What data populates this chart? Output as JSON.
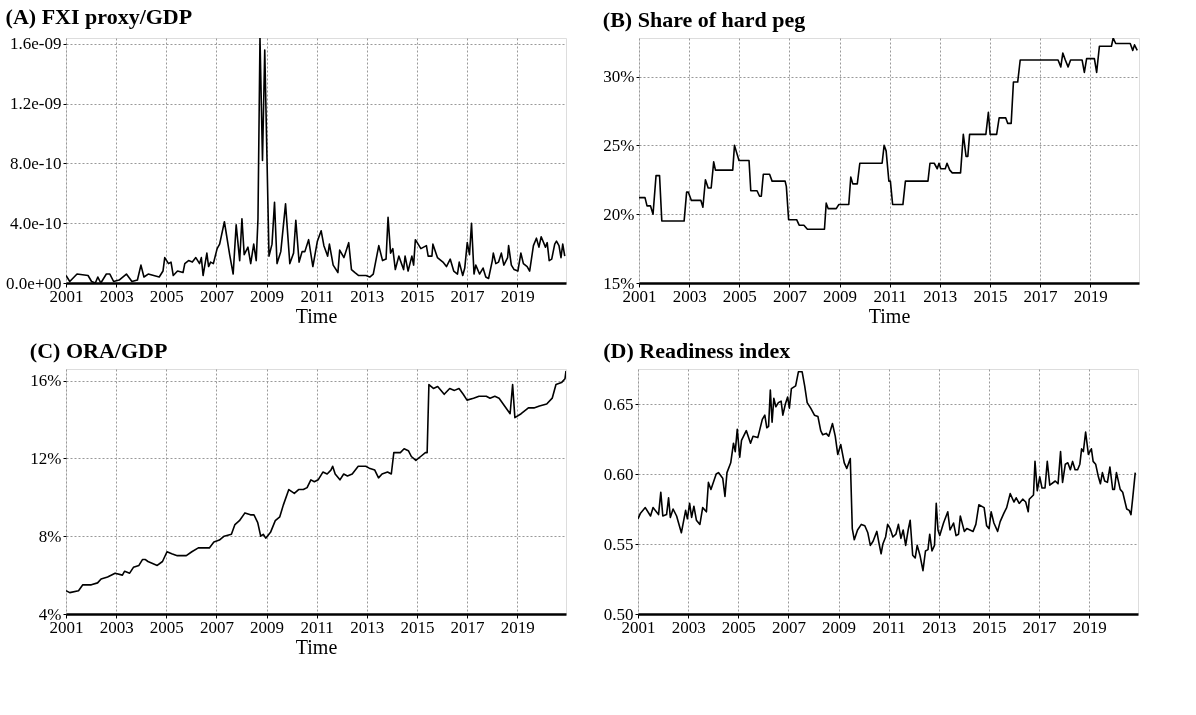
{
  "chart_data": [
    {
      "type": "line",
      "title": "(A) FXI proxy/GDP",
      "xlabel": "Time",
      "xlim": [
        2001,
        2020.95
      ],
      "xticks": [
        2001,
        2003,
        2005,
        2007,
        2009,
        2011,
        2013,
        2015,
        2017,
        2019
      ],
      "ylim": [
        0,
        1.64e-09
      ],
      "yticks": [
        {
          "value": 0,
          "label": "0.0e+00"
        },
        {
          "value": 4e-10,
          "label": "4.0e-10"
        },
        {
          "value": 8e-10,
          "label": "8.0e-10"
        },
        {
          "value": 1.2e-09,
          "label": "1.2e-09"
        },
        {
          "value": 1.6e-09,
          "label": "1.6e-09"
        }
      ],
      "grid": true,
      "line_style": "solid",
      "series": [
        {
          "color": "#000000",
          "x": [
            2001.0,
            2001.15,
            2001.44,
            2001.88,
            2002.02,
            2002.17,
            2002.27,
            2002.39,
            2002.61,
            2002.75,
            2002.9,
            2003.12,
            2003.41,
            2003.63,
            2003.85,
            2003.99,
            2004.11,
            2004.28,
            2004.72,
            2004.87,
            2004.94,
            2005.09,
            2005.19,
            2005.28,
            2005.45,
            2005.67,
            2005.74,
            2005.89,
            2006.04,
            2006.18,
            2006.33,
            2006.4,
            2006.47,
            2006.62,
            2006.69,
            2006.77,
            2006.88,
            2007.03,
            2007.13,
            2007.32,
            2007.53,
            2007.67,
            2007.79,
            2007.93,
            2008.02,
            2008.11,
            2008.26,
            2008.37,
            2008.49,
            2008.59,
            2008.66,
            2008.74,
            2008.84,
            2008.93,
            2009.1,
            2009.22,
            2009.32,
            2009.42,
            2009.57,
            2009.76,
            2009.93,
            2010.08,
            2010.17,
            2010.3,
            2010.42,
            2010.53,
            2010.68,
            2010.85,
            2011.03,
            2011.18,
            2011.29,
            2011.44,
            2011.51,
            2011.66,
            2011.85,
            2011.92,
            2012.09,
            2012.28,
            2012.39,
            2012.53,
            2012.68,
            2012.97,
            2013.12,
            2013.26,
            2013.48,
            2013.63,
            2013.77,
            2013.85,
            2013.95,
            2014.04,
            2014.14,
            2014.28,
            2014.47,
            2014.53,
            2014.65,
            2014.8,
            2014.87,
            2014.94,
            2015.16,
            2015.38,
            2015.45,
            2015.6,
            2015.64,
            2015.82,
            2016.04,
            2016.18,
            2016.33,
            2016.47,
            2016.62,
            2016.69,
            2016.83,
            2016.91,
            2017.01,
            2017.1,
            2017.18,
            2017.28,
            2017.35,
            2017.5,
            2017.64,
            2017.75,
            2017.86,
            2018.01,
            2018.05,
            2018.15,
            2018.26,
            2018.37,
            2018.47,
            2018.62,
            2018.66,
            2018.77,
            2018.88,
            2019.03,
            2019.15,
            2019.25,
            2019.4,
            2019.5,
            2019.65,
            2019.77,
            2019.87,
            2019.96,
            2020.13,
            2020.2,
            2020.28,
            2020.38,
            2020.5,
            2020.57,
            2020.67,
            2020.75,
            2020.82,
            2020.9
          ],
          "values": [
            5e-11,
            1e-11,
            6e-11,
            5e-11,
            1e-11,
            0,
            4e-11,
            0,
            6e-11,
            6e-11,
            1e-11,
            2e-11,
            6e-11,
            1e-11,
            2e-11,
            1.2e-10,
            4e-11,
            6e-11,
            4e-11,
            8e-11,
            1.7e-10,
            1.3e-10,
            1.4e-10,
            5e-11,
            8e-11,
            7e-11,
            1.3e-10,
            1.5e-10,
            1.4e-10,
            1.7e-10,
            1.3e-10,
            1.7e-10,
            5e-11,
            2e-10,
            1.1e-10,
            1.4e-10,
            1.3e-10,
            2.3e-10,
            2.6e-10,
            4.1e-10,
            1.9e-10,
            6e-11,
            3.9e-10,
            1.5e-10,
            4.3e-10,
            1.9e-10,
            2.4e-10,
            1.3e-10,
            2.6e-10,
            1.5e-10,
            4.3e-10,
            1.64e-09,
            8.2e-10,
            1.56e-09,
            1.8e-10,
            2.6e-10,
            5.4e-10,
            1.3e-10,
            2.1e-10,
            5.3e-10,
            1.3e-10,
            2e-10,
            4.2e-10,
            1.4e-10,
            2.1e-10,
            2.1e-10,
            2.9e-10,
            1.1e-10,
            2.8e-10,
            3.5e-10,
            2.5e-10,
            1.8e-10,
            2.6e-10,
            1.2e-10,
            7e-11,
            2.2e-10,
            1.7e-10,
            2.7e-10,
            9e-11,
            7e-11,
            5e-11,
            5e-11,
            4e-11,
            6e-11,
            2.5e-10,
            1.5e-10,
            1.6e-10,
            4.4e-10,
            2e-10,
            2.3e-10,
            9e-11,
            1.8e-10,
            9e-11,
            1.8e-10,
            8e-11,
            1.8e-10,
            1.2e-10,
            2.9e-10,
            2.3e-10,
            2.5e-10,
            1.8e-10,
            1.8e-10,
            2.6e-10,
            1.7e-10,
            1.4e-10,
            1.1e-10,
            1.6e-10,
            8e-11,
            6e-11,
            1.4e-10,
            5e-11,
            1e-10,
            2.7e-10,
            1.9e-10,
            4e-10,
            6e-11,
            1.2e-10,
            6e-11,
            1e-10,
            4e-11,
            3e-11,
            1.5e-10,
            2e-10,
            1.3e-10,
            1.4e-10,
            2e-10,
            1.2e-10,
            1.7e-10,
            2.5e-10,
            1.2e-10,
            9e-11,
            8e-11,
            2e-10,
            1.3e-10,
            1.1e-10,
            8e-11,
            2.5e-10,
            3e-10,
            2.4e-10,
            3.1e-10,
            2.4e-10,
            2.7e-10,
            1.5e-10,
            1.6e-10,
            2.6e-10,
            2.8e-10,
            2.5e-10,
            1.7e-10,
            2.6e-10,
            1.8e-10
          ]
        }
      ]
    },
    {
      "type": "line",
      "title": "(B) Share of hard peg",
      "xlabel": "Time",
      "xlim": [
        2001,
        2020.95
      ],
      "xticks": [
        2001,
        2003,
        2005,
        2007,
        2009,
        2011,
        2013,
        2015,
        2017,
        2019
      ],
      "ylim": [
        15,
        32.8
      ],
      "yticks": [
        {
          "value": 15,
          "label": "15%"
        },
        {
          "value": 20,
          "label": "20%"
        },
        {
          "value": 25,
          "label": "25%"
        },
        {
          "value": 30,
          "label": "30%"
        }
      ],
      "grid": true,
      "line_style": "solid",
      "series": [
        {
          "color": "#000000",
          "x": [
            2001.0,
            2001.24,
            2001.32,
            2001.46,
            2001.56,
            2001.68,
            2001.82,
            2001.91,
            2002.8,
            2002.9,
            2002.97,
            2003.09,
            2003.47,
            2003.55,
            2003.65,
            2003.76,
            2003.88,
            2003.98,
            2004.05,
            2004.74,
            2004.81,
            2004.99,
            2005.39,
            2005.46,
            2005.71,
            2005.81,
            2005.88,
            2005.96,
            2006.21,
            2006.31,
            2006.83,
            2006.88,
            2006.97,
            2007.29,
            2007.39,
            2007.58,
            2007.72,
            2008.4,
            2008.47,
            2008.55,
            2008.87,
            2008.97,
            2009.37,
            2009.45,
            2009.53,
            2009.71,
            2009.81,
            2010.7,
            2010.78,
            2010.86,
            2010.97,
            2011.03,
            2011.12,
            2011.53,
            2011.63,
            2012.53,
            2012.61,
            2012.78,
            2012.9,
            2012.97,
            2013.04,
            2013.22,
            2013.29,
            2013.4,
            2013.5,
            2013.83,
            2013.94,
            2014.05,
            2014.12,
            2014.19,
            2014.84,
            2014.94,
            2015.01,
            2015.27,
            2015.37,
            2015.63,
            2015.71,
            2015.85,
            2015.94,
            2016.11,
            2016.21,
            2017.72,
            2017.83,
            2017.91,
            2018.01,
            2018.12,
            2018.22,
            2018.68,
            2018.77,
            2018.86,
            2019.17,
            2019.26,
            2019.37,
            2019.85,
            2019.92,
            2020.02,
            2020.6,
            2020.7,
            2020.77,
            2020.88
          ],
          "values": [
            21.2,
            21.2,
            20.6,
            20.6,
            20.0,
            22.8,
            22.8,
            19.5,
            19.5,
            21.6,
            21.6,
            21.0,
            21.0,
            20.5,
            22.5,
            21.9,
            21.9,
            23.8,
            23.2,
            23.2,
            25.0,
            23.9,
            23.9,
            21.7,
            21.7,
            21.3,
            21.3,
            22.9,
            22.9,
            22.4,
            22.4,
            22.0,
            19.6,
            19.6,
            19.2,
            19.2,
            18.9,
            18.9,
            20.8,
            20.4,
            20.4,
            20.7,
            20.7,
            22.7,
            22.2,
            22.2,
            23.7,
            23.7,
            25.0,
            24.6,
            22.4,
            22.4,
            20.7,
            20.7,
            22.4,
            22.4,
            23.7,
            23.7,
            23.3,
            23.7,
            23.3,
            23.3,
            23.7,
            23.2,
            23.0,
            23.0,
            25.8,
            24.2,
            24.2,
            25.8,
            25.8,
            27.4,
            25.8,
            25.8,
            27.0,
            27.0,
            26.6,
            26.6,
            29.6,
            29.6,
            31.2,
            31.2,
            30.7,
            31.7,
            31.2,
            30.7,
            31.2,
            31.2,
            30.3,
            31.3,
            31.3,
            30.3,
            32.2,
            32.2,
            32.8,
            32.4,
            32.4,
            31.9,
            32.3,
            31.9
          ]
        }
      ]
    },
    {
      "type": "line",
      "title": "(C) ORA/GDP",
      "xlabel": "Time",
      "xlim": [
        2001,
        2020.95
      ],
      "xticks": [
        2001,
        2003,
        2005,
        2007,
        2009,
        2011,
        2013,
        2015,
        2017,
        2019
      ],
      "ylim": [
        4,
        16.6
      ],
      "yticks": [
        {
          "value": 4,
          "label": "4%"
        },
        {
          "value": 8,
          "label": "8%"
        },
        {
          "value": 12,
          "label": "12%"
        },
        {
          "value": 16,
          "label": "16%"
        }
      ],
      "grid": true,
      "line_style": "solid",
      "series": [
        {
          "color": "#000000",
          "x": [
            2001.0,
            2001.15,
            2001.5,
            2001.67,
            2002.01,
            2002.26,
            2002.4,
            2002.66,
            2002.96,
            2003.25,
            2003.34,
            2003.54,
            2003.69,
            2003.91,
            2004.05,
            2004.17,
            2004.27,
            2004.64,
            2004.85,
            2005.03,
            2005.22,
            2005.44,
            2005.8,
            2006.02,
            2006.28,
            2006.46,
            2006.72,
            2006.9,
            2007.12,
            2007.31,
            2007.6,
            2007.74,
            2007.92,
            2008.14,
            2008.36,
            2008.5,
            2008.65,
            2008.77,
            2008.87,
            2008.97,
            2009.16,
            2009.35,
            2009.53,
            2009.67,
            2009.89,
            2010.11,
            2010.28,
            2010.47,
            2010.62,
            2010.77,
            2010.91,
            2011.06,
            2011.25,
            2011.42,
            2011.57,
            2011.64,
            2011.74,
            2011.93,
            2012.08,
            2012.23,
            2012.42,
            2012.66,
            2012.81,
            2012.96,
            2013.1,
            2013.32,
            2013.47,
            2013.61,
            2013.83,
            2013.98,
            2014.08,
            2014.34,
            2014.49,
            2014.66,
            2014.78,
            2014.96,
            2015.15,
            2015.34,
            2015.41,
            2015.48,
            2015.66,
            2015.83,
            2016.09,
            2016.31,
            2016.5,
            2016.68,
            2016.85,
            2017.0,
            2017.26,
            2017.48,
            2017.77,
            2017.92,
            2018.11,
            2018.28,
            2018.5,
            2018.72,
            2018.82,
            2018.91,
            2019.16,
            2019.45,
            2019.67,
            2019.89,
            2020.18,
            2020.4,
            2020.55,
            2020.77,
            2020.91,
            2020.95
          ],
          "values": [
            5.2,
            5.1,
            5.2,
            5.5,
            5.5,
            5.6,
            5.8,
            5.9,
            6.1,
            6.0,
            6.2,
            6.1,
            6.4,
            6.5,
            6.8,
            6.8,
            6.7,
            6.5,
            6.7,
            7.2,
            7.1,
            7.0,
            7.0,
            7.2,
            7.4,
            7.4,
            7.4,
            7.7,
            7.8,
            8.0,
            8.1,
            8.6,
            8.8,
            9.2,
            9.1,
            9.1,
            8.7,
            8.0,
            8.1,
            7.9,
            8.2,
            8.8,
            9.0,
            9.6,
            10.4,
            10.2,
            10.4,
            10.4,
            10.5,
            10.9,
            10.8,
            10.9,
            11.3,
            11.2,
            11.4,
            11.6,
            11.2,
            10.9,
            11.2,
            11.1,
            11.2,
            11.6,
            11.6,
            11.6,
            11.5,
            11.4,
            11.0,
            11.2,
            11.3,
            11.2,
            12.3,
            12.3,
            12.5,
            12.4,
            12.1,
            11.9,
            12.1,
            12.3,
            12.3,
            15.8,
            15.6,
            15.7,
            15.3,
            15.6,
            15.5,
            15.6,
            15.3,
            15.0,
            15.1,
            15.2,
            15.2,
            15.1,
            15.2,
            15.1,
            14.7,
            14.3,
            15.8,
            14.1,
            14.3,
            14.6,
            14.6,
            14.7,
            14.8,
            15.1,
            15.8,
            15.9,
            16.1,
            16.5
          ]
        }
      ]
    },
    {
      "type": "line",
      "title": "(D) Readiness index",
      "xlim": [
        2001,
        2020.95
      ],
      "xticks": [
        2001,
        2003,
        2005,
        2007,
        2009,
        2011,
        2013,
        2015,
        2017,
        2019
      ],
      "ylim": [
        0.5,
        0.675
      ],
      "yticks": [
        {
          "value": 0.5,
          "label": "0.50"
        },
        {
          "value": 0.55,
          "label": "0.55"
        },
        {
          "value": 0.6,
          "label": "0.60"
        },
        {
          "value": 0.65,
          "label": "0.65"
        }
      ],
      "grid": true,
      "line_style": "solid",
      "series": [
        {
          "color": "#000000",
          "x": [
            2001.0,
            2001.1,
            2001.29,
            2001.5,
            2001.6,
            2001.82,
            2001.91,
            2001.99,
            2002.14,
            2002.22,
            2002.29,
            2002.4,
            2002.54,
            2002.73,
            2002.9,
            2002.97,
            2003.06,
            2003.14,
            2003.23,
            2003.33,
            2003.47,
            2003.58,
            2003.73,
            2003.81,
            2003.91,
            2004.12,
            2004.21,
            2004.38,
            2004.47,
            2004.55,
            2004.7,
            2004.81,
            2004.88,
            2004.96,
            2005.06,
            2005.13,
            2005.32,
            2005.49,
            2005.59,
            2005.78,
            2005.85,
            2005.96,
            2006.06,
            2006.14,
            2006.21,
            2006.28,
            2006.35,
            2006.42,
            2006.5,
            2006.6,
            2006.71,
            2006.78,
            2006.88,
            2006.97,
            2007.04,
            2007.12,
            2007.29,
            2007.4,
            2007.55,
            2007.65,
            2007.75,
            2007.89,
            2008.04,
            2008.18,
            2008.29,
            2008.37,
            2008.51,
            2008.61,
            2008.76,
            2008.87,
            2008.97,
            2009.09,
            2009.23,
            2009.33,
            2009.47,
            2009.55,
            2009.63,
            2009.76,
            2009.91,
            2010.05,
            2010.17,
            2010.27,
            2010.38,
            2010.53,
            2010.6,
            2010.7,
            2010.77,
            2010.88,
            2010.96,
            2011.06,
            2011.17,
            2011.29,
            2011.39,
            2011.49,
            2011.58,
            2011.68,
            2011.78,
            2011.86,
            2011.96,
            2012.06,
            2012.14,
            2012.25,
            2012.37,
            2012.47,
            2012.57,
            2012.64,
            2012.73,
            2012.83,
            2012.9,
            2012.97,
            2013.04,
            2013.19,
            2013.36,
            2013.45,
            2013.59,
            2013.69,
            2013.79,
            2013.86,
            2014.02,
            2014.12,
            2014.37,
            2014.48,
            2014.6,
            2014.81,
            2014.91,
            2015.01,
            2015.09,
            2015.2,
            2015.35,
            2015.45,
            2015.6,
            2015.71,
            2015.85,
            2016.0,
            2016.09,
            2016.21,
            2016.35,
            2016.47,
            2016.57,
            2016.61,
            2016.78,
            2016.84,
            2016.93,
            2017.03,
            2017.12,
            2017.24,
            2017.33,
            2017.43,
            2017.65,
            2017.76,
            2017.86,
            2017.94,
            2018.05,
            2018.15,
            2018.25,
            2018.34,
            2018.44,
            2018.54,
            2018.63,
            2018.7,
            2018.77,
            2018.86,
            2018.97,
            2019.09,
            2019.16,
            2019.26,
            2019.37,
            2019.45,
            2019.53,
            2019.62,
            2019.73,
            2019.83,
            2019.94,
            2020.01,
            2020.09,
            2020.24,
            2020.34,
            2020.5,
            2020.6,
            2020.67,
            2020.74,
            2020.84
          ],
          "values": [
            0.568,
            0.572,
            0.576,
            0.57,
            0.576,
            0.571,
            0.587,
            0.57,
            0.571,
            0.583,
            0.569,
            0.575,
            0.57,
            0.558,
            0.574,
            0.568,
            0.579,
            0.569,
            0.577,
            0.567,
            0.564,
            0.576,
            0.573,
            0.594,
            0.589,
            0.6,
            0.601,
            0.597,
            0.584,
            0.601,
            0.608,
            0.622,
            0.616,
            0.632,
            0.612,
            0.624,
            0.631,
            0.622,
            0.627,
            0.626,
            0.631,
            0.639,
            0.642,
            0.633,
            0.634,
            0.66,
            0.637,
            0.654,
            0.648,
            0.651,
            0.652,
            0.642,
            0.65,
            0.655,
            0.647,
            0.661,
            0.663,
            0.673,
            0.673,
            0.663,
            0.651,
            0.647,
            0.642,
            0.641,
            0.631,
            0.628,
            0.629,
            0.627,
            0.636,
            0.627,
            0.614,
            0.621,
            0.608,
            0.604,
            0.611,
            0.561,
            0.553,
            0.56,
            0.564,
            0.563,
            0.558,
            0.549,
            0.552,
            0.559,
            0.552,
            0.543,
            0.55,
            0.555,
            0.564,
            0.561,
            0.555,
            0.557,
            0.564,
            0.554,
            0.56,
            0.549,
            0.56,
            0.567,
            0.542,
            0.54,
            0.549,
            0.542,
            0.531,
            0.545,
            0.546,
            0.557,
            0.545,
            0.549,
            0.579,
            0.56,
            0.556,
            0.565,
            0.573,
            0.56,
            0.565,
            0.556,
            0.557,
            0.57,
            0.559,
            0.561,
            0.559,
            0.564,
            0.578,
            0.576,
            0.563,
            0.561,
            0.573,
            0.565,
            0.559,
            0.566,
            0.572,
            0.576,
            0.586,
            0.58,
            0.583,
            0.579,
            0.582,
            0.58,
            0.573,
            0.582,
            0.585,
            0.609,
            0.588,
            0.598,
            0.59,
            0.59,
            0.609,
            0.592,
            0.595,
            0.593,
            0.616,
            0.594,
            0.607,
            0.608,
            0.603,
            0.609,
            0.603,
            0.603,
            0.607,
            0.618,
            0.616,
            0.63,
            0.614,
            0.618,
            0.609,
            0.607,
            0.598,
            0.593,
            0.601,
            0.595,
            0.594,
            0.605,
            0.589,
            0.589,
            0.601,
            0.589,
            0.587,
            0.575,
            0.574,
            0.571,
            0.583,
            0.601
          ]
        }
      ]
    }
  ]
}
